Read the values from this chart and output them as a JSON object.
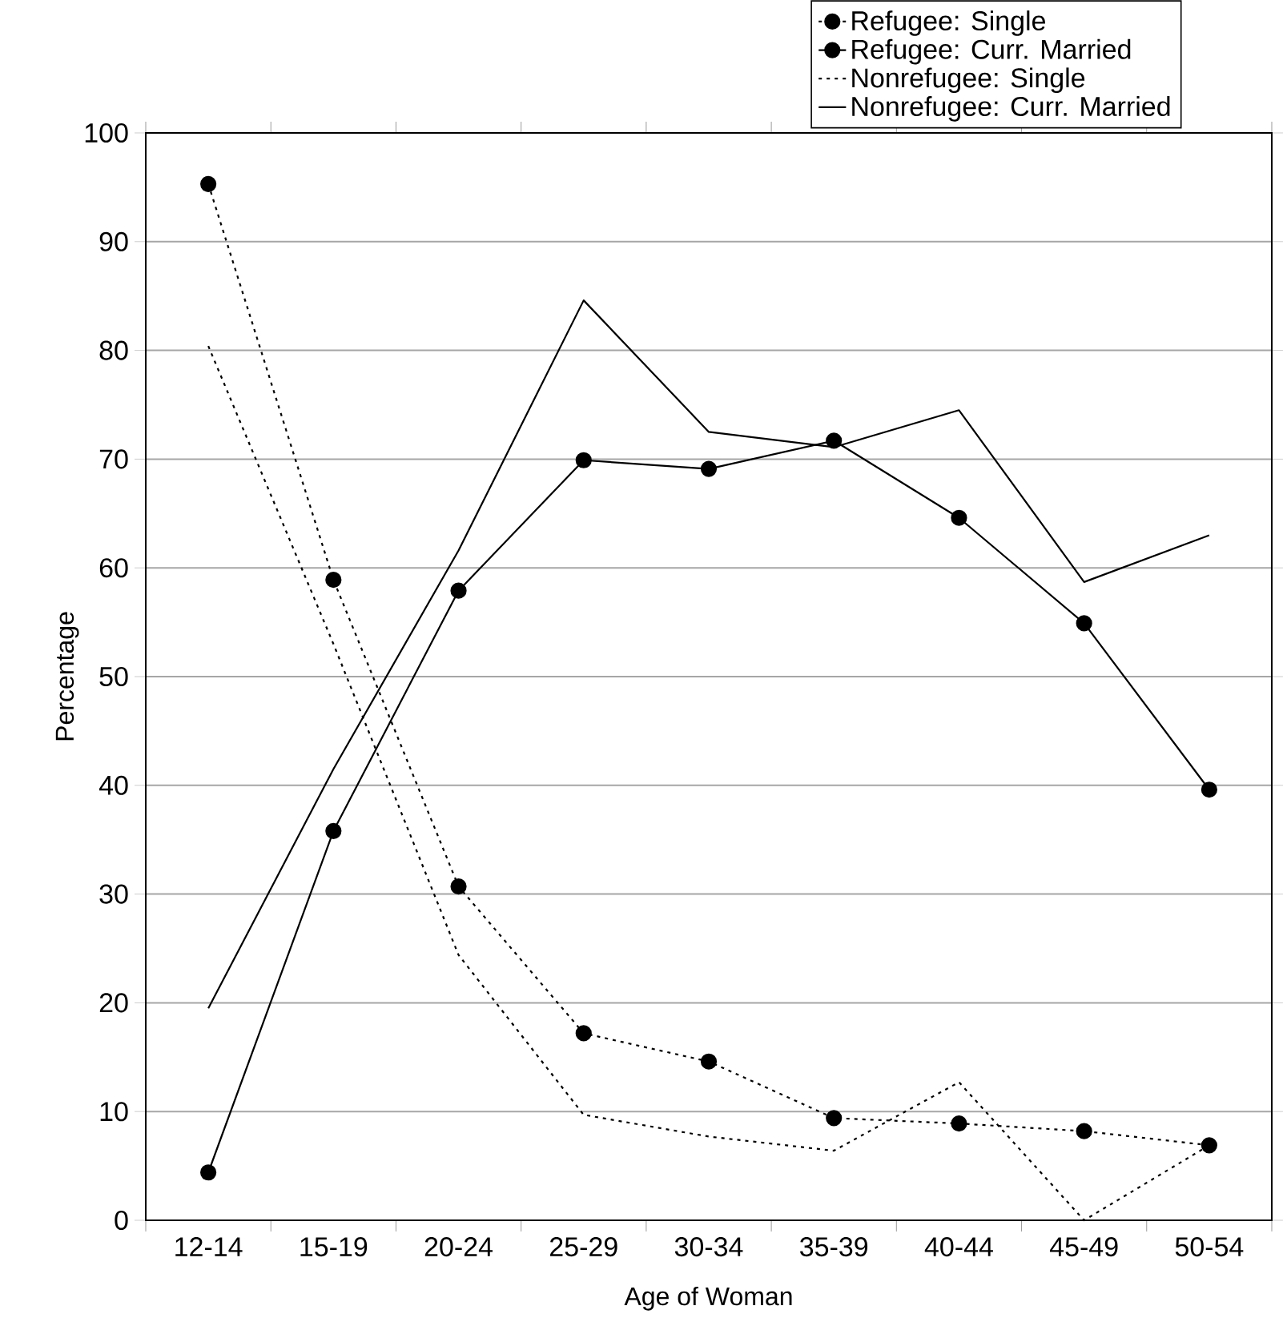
{
  "chart_data": {
    "type": "line",
    "xlabel": "Age of Woman",
    "ylabel": "Percentage",
    "categories": [
      "12-14",
      "15-19",
      "20-24",
      "25-29",
      "30-34",
      "35-39",
      "40-44",
      "45-49",
      "50-54"
    ],
    "series": [
      {
        "name": "Refugee: Single",
        "color": "#000000",
        "marker": "circle",
        "line_style": "dotted",
        "values": [
          95.3,
          58.9,
          30.7,
          17.2,
          14.6,
          9.4,
          8.9,
          8.2,
          6.9
        ]
      },
      {
        "name": "Refugee: Curr. Married",
        "color": "#000000",
        "marker": "circle",
        "line_style": "solid",
        "values": [
          4.4,
          35.8,
          57.9,
          69.9,
          69.1,
          71.7,
          64.6,
          54.9,
          39.6
        ]
      },
      {
        "name": "Nonrefugee: Single",
        "color": "#000000",
        "marker": "none",
        "line_style": "dotted",
        "values": [
          80.4,
          53,
          24.4,
          9.7,
          7.7,
          6.4,
          12.7,
          0,
          6.9
        ]
      },
      {
        "name": "Nonrefugee: Curr. Married",
        "color": "#000000",
        "marker": "none",
        "line_style": "solid",
        "values": [
          19.5,
          41.5,
          61.6,
          84.6,
          72.5,
          71.1,
          74.5,
          58.7,
          63.0
        ]
      }
    ],
    "ylim": [
      0,
      100
    ],
    "yticks": [
      0,
      10,
      20,
      30,
      40,
      50,
      60,
      70,
      80,
      90,
      100
    ],
    "grid": "y",
    "legend": "top right"
  }
}
